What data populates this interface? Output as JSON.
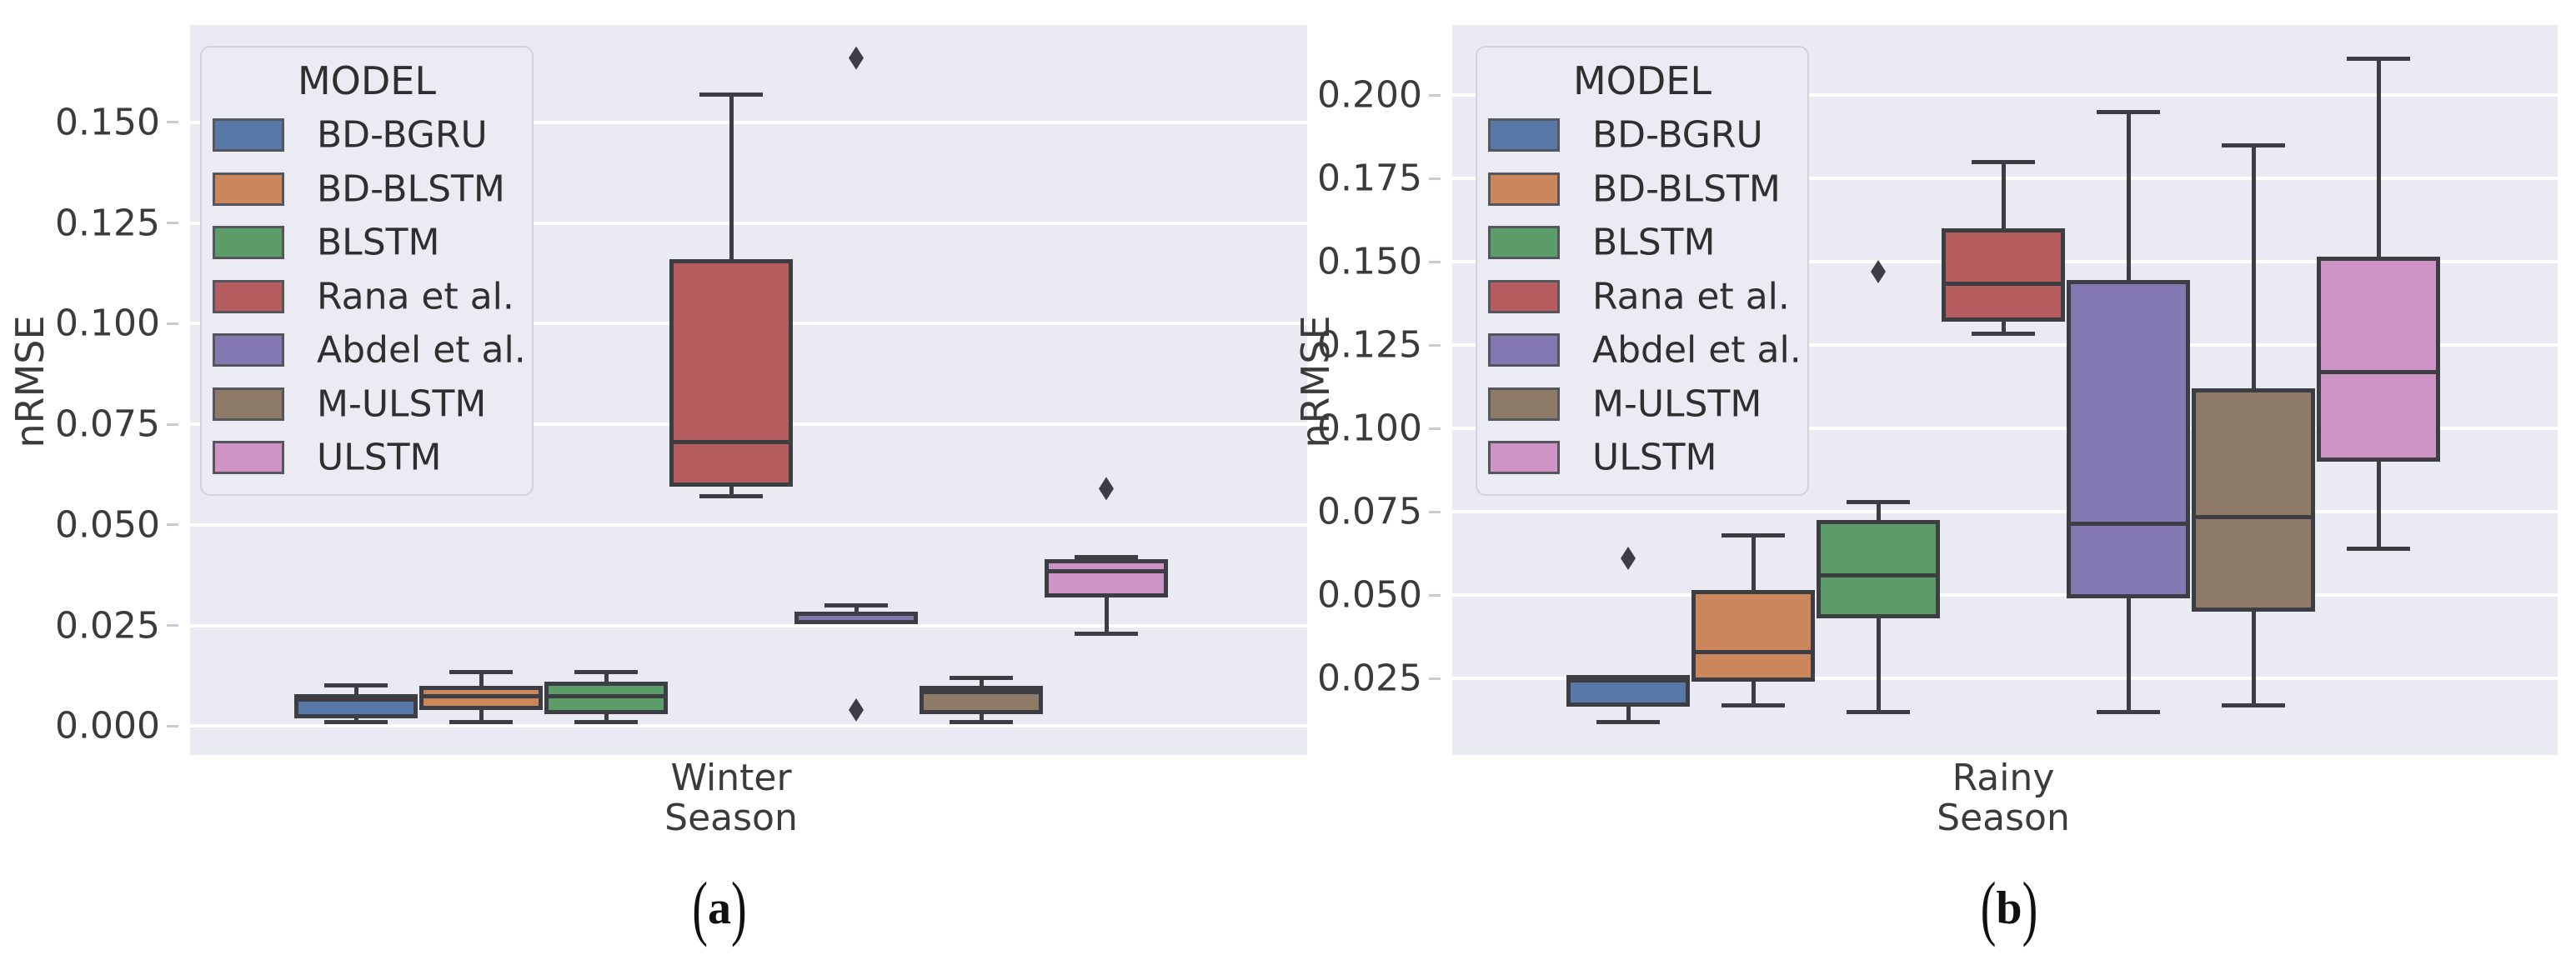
{
  "figure": {
    "ylabel": "nRMSE",
    "xlabel": "Season",
    "legend_title": "MODEL",
    "caption_a": "(a)",
    "caption_b": "(b)"
  },
  "colors": {
    "BD-BGRU": "#5878a8",
    "BD-BLSTM": "#cc865c",
    "BLSTM": "#5b9c68",
    "Rana et al.": "#b55c5e",
    "Abdel et al.": "#8478b2",
    "M-ULSTM": "#8d7b67",
    "ULSTM": "#cd94c5",
    "box_edge": "#3d3d44",
    "plot_background": "#eaeaf2",
    "grid": "#ffffff",
    "figure_background": "#ffffff",
    "text": "#3b3b3b"
  },
  "chart_data": [
    {
      "type": "box",
      "category": "Winter",
      "xlabel_line1": "Winter",
      "xlabel_line2": "Season",
      "ylabel": "nRMSE",
      "caption": "(a)",
      "legend_title": "MODEL",
      "legend_position": "upper left",
      "grid": true,
      "ylim": [
        -0.0072,
        0.1742
      ],
      "yticks": [
        0.0,
        0.025,
        0.05,
        0.075,
        0.1,
        0.125,
        0.15
      ],
      "ytick_labels": [
        "0.000",
        "0.025",
        "0.050",
        "0.075",
        "0.100",
        "0.125",
        "0.150"
      ],
      "series": [
        {
          "name": "BD-BGRU",
          "whislo": 0.001,
          "q1": 0.002,
          "med": 0.0065,
          "q3": 0.008,
          "whishi": 0.01,
          "fliers": []
        },
        {
          "name": "BD-BLSTM",
          "whislo": 0.001,
          "q1": 0.004,
          "med": 0.0075,
          "q3": 0.01,
          "whishi": 0.0135,
          "fliers": []
        },
        {
          "name": "BLSTM",
          "whislo": 0.001,
          "q1": 0.003,
          "med": 0.0075,
          "q3": 0.011,
          "whishi": 0.0135,
          "fliers": []
        },
        {
          "name": "Rana et al.",
          "whislo": 0.057,
          "q1": 0.0595,
          "med": 0.0705,
          "q3": 0.116,
          "whishi": 0.157,
          "fliers": []
        },
        {
          "name": "Abdel et al.",
          "whislo": 0.0253,
          "q1": 0.0253,
          "med": 0.028,
          "q3": 0.0285,
          "whishi": 0.03,
          "fliers": [
            0.166,
            0.004
          ]
        },
        {
          "name": "M-ULSTM",
          "whislo": 0.001,
          "q1": 0.003,
          "med": 0.0085,
          "q3": 0.01,
          "whishi": 0.012,
          "fliers": []
        },
        {
          "name": "ULSTM",
          "whislo": 0.023,
          "q1": 0.032,
          "med": 0.0385,
          "q3": 0.0415,
          "whishi": 0.042,
          "fliers": [
            0.059
          ]
        }
      ]
    },
    {
      "type": "box",
      "category": "Rainy",
      "xlabel_line1": "Rainy",
      "xlabel_line2": "Season",
      "ylabel": "nRMSE",
      "caption": "(b)",
      "legend_title": "MODEL",
      "legend_position": "upper left",
      "grid": true,
      "ylim": [
        0.002,
        0.221
      ],
      "yticks": [
        0.025,
        0.05,
        0.075,
        0.1,
        0.125,
        0.15,
        0.175,
        0.2
      ],
      "ytick_labels": [
        "0.025",
        "0.050",
        "0.075",
        "0.100",
        "0.125",
        "0.150",
        "0.175",
        "0.200"
      ],
      "series": [
        {
          "name": "BD-BGRU",
          "whislo": 0.012,
          "q1": 0.0165,
          "med": 0.0245,
          "q3": 0.026,
          "whishi": 0.026,
          "fliers": [
            0.061
          ]
        },
        {
          "name": "BD-BLSTM",
          "whislo": 0.017,
          "q1": 0.024,
          "med": 0.033,
          "q3": 0.0515,
          "whishi": 0.068,
          "fliers": []
        },
        {
          "name": "BLSTM",
          "whislo": 0.015,
          "q1": 0.043,
          "med": 0.056,
          "q3": 0.0725,
          "whishi": 0.078,
          "fliers": [
            0.147
          ]
        },
        {
          "name": "Rana et al.",
          "whislo": 0.1285,
          "q1": 0.132,
          "med": 0.1435,
          "q3": 0.16,
          "whishi": 0.18,
          "fliers": []
        },
        {
          "name": "Abdel et al.",
          "whislo": 0.015,
          "q1": 0.049,
          "med": 0.0715,
          "q3": 0.1445,
          "whishi": 0.195,
          "fliers": []
        },
        {
          "name": "M-ULSTM",
          "whislo": 0.017,
          "q1": 0.045,
          "med": 0.0735,
          "q3": 0.112,
          "whishi": 0.185,
          "fliers": []
        },
        {
          "name": "ULSTM",
          "whislo": 0.064,
          "q1": 0.09,
          "med": 0.117,
          "q3": 0.1515,
          "whishi": 0.211,
          "fliers": []
        }
      ]
    }
  ]
}
